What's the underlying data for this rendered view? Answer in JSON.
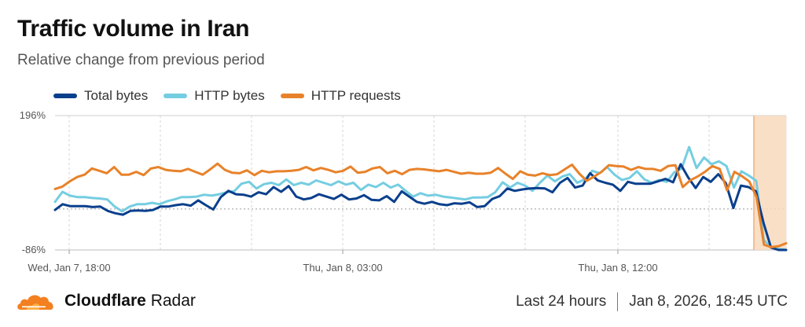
{
  "header": {
    "title": "Traffic volume in Iran",
    "subtitle": "Relative change from previous period"
  },
  "footer": {
    "brand_bold": "Cloudflare",
    "brand_regular": "Radar",
    "range": "Last 24 hours",
    "timestamp": "Jan 8, 2026, 18:45 UTC"
  },
  "colors": {
    "total_bytes": "#0a3f8c",
    "http_bytes": "#75cde1",
    "http_requests": "#e8822a",
    "highlight": "#f9d9bd",
    "logo": "#f38020"
  },
  "icons": {
    "logo": "cloudflare-cloud-icon"
  },
  "chart_data": {
    "type": "line",
    "title": "Traffic volume in Iran",
    "subtitle": "Relative change from previous period",
    "xlabel": "",
    "ylabel": "",
    "y_tick_labels": [
      "196%",
      "-86%"
    ],
    "x_tick_labels": [
      "Wed, Jan 7, 18:00",
      "Thu, Jan 8, 03:00",
      "Thu, Jan 8, 12:00"
    ],
    "ylim": [
      -86,
      196
    ],
    "legend_position": "top-left",
    "grid": "dashed vertical and horizontal lines",
    "highlight_region": "last interval (about Jan 8, 17:00–18:45)",
    "series": [
      {
        "name": "Total bytes",
        "values": [
          -2,
          10,
          6,
          6,
          6,
          4,
          5,
          -4,
          -9,
          -12,
          -4,
          -3,
          -4,
          -2,
          5,
          5,
          8,
          10,
          7,
          18,
          8,
          -1,
          25,
          38,
          31,
          30,
          26,
          35,
          31,
          46,
          36,
          48,
          26,
          20,
          23,
          31,
          26,
          21,
          30,
          20,
          22,
          29,
          19,
          18,
          27,
          15,
          37,
          26,
          15,
          11,
          15,
          10,
          8,
          12,
          11,
          14,
          4,
          6,
          21,
          27,
          43,
          38,
          41,
          43,
          44,
          43,
          35,
          55,
          65,
          45,
          49,
          75,
          60,
          55,
          51,
          38,
          57,
          53,
          53,
          53,
          58,
          63,
          56,
          94,
          66,
          44,
          67,
          57,
          73,
          54,
          2,
          49,
          46,
          37,
          -29,
          -81,
          -86,
          -86
        ]
      },
      {
        "name": "HTTP bytes",
        "values": [
          15,
          36,
          28,
          25,
          25,
          23,
          22,
          20,
          5,
          -5,
          5,
          10,
          10,
          13,
          10,
          16,
          20,
          25,
          25,
          26,
          30,
          28,
          31,
          35,
          37,
          53,
          57,
          43,
          52,
          55,
          50,
          62,
          50,
          55,
          51,
          60,
          55,
          50,
          58,
          51,
          55,
          40,
          51,
          46,
          55,
          45,
          51,
          38,
          26,
          33,
          28,
          30,
          26,
          24,
          22,
          20,
          24,
          24,
          25,
          35,
          56,
          45,
          55,
          49,
          38,
          55,
          70,
          58,
          68,
          73,
          55,
          62,
          80,
          75,
          88,
          72,
          61,
          65,
          79,
          62,
          55,
          61,
          57,
          77,
          85,
          130,
          86,
          108,
          94,
          100,
          90,
          45,
          79,
          70,
          59,
          -65,
          -81,
          -84,
          -86
        ]
      },
      {
        "name": "HTTP requests",
        "values": [
          42,
          47,
          58,
          67,
          72,
          85,
          80,
          75,
          88,
          72,
          72,
          78,
          71,
          85,
          88,
          82,
          80,
          79,
          84,
          78,
          72,
          83,
          95,
          82,
          76,
          75,
          81,
          71,
          80,
          77,
          79,
          79,
          80,
          82,
          88,
          81,
          86,
          82,
          77,
          80,
          89,
          76,
          78,
          85,
          88,
          75,
          80,
          73,
          82,
          84,
          83,
          81,
          79,
          82,
          78,
          74,
          76,
          74,
          74,
          76,
          86,
          74,
          63,
          79,
          72,
          70,
          75,
          71,
          73,
          83,
          93,
          74,
          59,
          68,
          78,
          92,
          90,
          89,
          82,
          88,
          84,
          84,
          80,
          90,
          92,
          46,
          60,
          68,
          78,
          90,
          84,
          39,
          78,
          69,
          58,
          25,
          -75,
          -80,
          -78,
          -72
        ]
      }
    ]
  }
}
